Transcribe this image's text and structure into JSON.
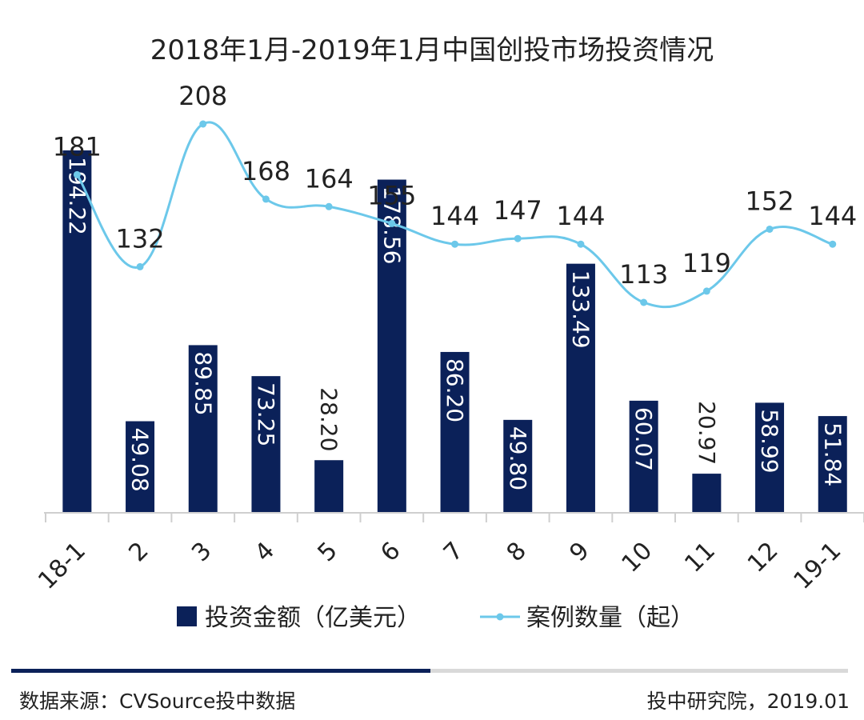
{
  "chart_data": {
    "type": "bar+line",
    "title": "2018年1月-2019年1月中国创投市场投资情况",
    "categories": [
      "18-1",
      "2",
      "3",
      "4",
      "5",
      "6",
      "7",
      "8",
      "9",
      "10",
      "11",
      "12",
      "19-1"
    ],
    "series": [
      {
        "name": "投资金额（亿美元）",
        "type": "bar",
        "values": [
          194.22,
          49.08,
          89.85,
          73.25,
          28.2,
          178.56,
          86.2,
          49.8,
          133.49,
          60.07,
          20.97,
          58.99,
          51.84
        ],
        "labels": [
          "194.22",
          "49.08",
          "89.85",
          "73.25",
          "28.20",
          "178.56",
          "86.20",
          "49.80",
          "133.49",
          "60.07",
          "20.97",
          "58.99",
          "51.84"
        ],
        "color": "#0b2159"
      },
      {
        "name": "案例数量（起）",
        "type": "line",
        "values": [
          181,
          132,
          208,
          168,
          164,
          155,
          144,
          147,
          144,
          113,
          119,
          152,
          144
        ],
        "labels": [
          "181",
          "132",
          "208",
          "168",
          "164",
          "155",
          "144",
          "147",
          "144",
          "113",
          "119",
          "152",
          "144"
        ],
        "color": "#6cc8ea"
      }
    ],
    "legend_position": "bottom",
    "grid": false
  },
  "footer": {
    "source": "数据来源：CVSource投中数据",
    "credit": "投中研究院，2019.01"
  }
}
